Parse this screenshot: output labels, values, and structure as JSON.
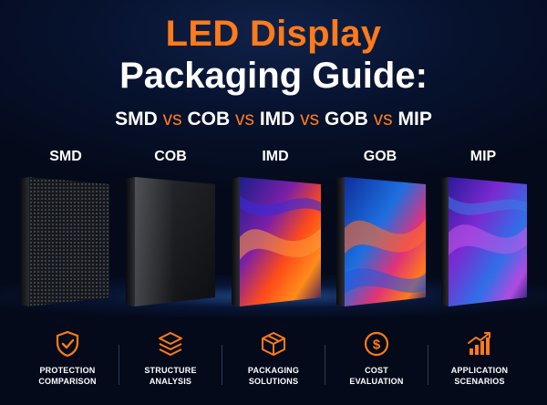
{
  "header": {
    "title_line1": "LED Display",
    "title_line2": "Packaging Guide:",
    "subtitle": [
      {
        "text": "SMD",
        "vs": false
      },
      {
        "text": " vs ",
        "vs": true
      },
      {
        "text": "COB",
        "vs": false
      },
      {
        "text": " vs ",
        "vs": true
      },
      {
        "text": "IMD",
        "vs": false
      },
      {
        "text": " vs ",
        "vs": true
      },
      {
        "text": "GOB",
        "vs": false
      },
      {
        "text": " vs ",
        "vs": true
      },
      {
        "text": "MIP",
        "vs": false
      }
    ]
  },
  "panels": [
    {
      "label": "SMD"
    },
    {
      "label": "COB"
    },
    {
      "label": "IMD"
    },
    {
      "label": "GOB"
    },
    {
      "label": "MIP"
    }
  ],
  "features": [
    {
      "icon": "shield-check-icon",
      "line1": "PROTECTION",
      "line2": "COMPARISON"
    },
    {
      "icon": "layers-icon",
      "line1": "STRUCTURE",
      "line2": "ANALYSIS"
    },
    {
      "icon": "package-box-icon",
      "line1": "PACKAGING",
      "line2": "SOLUTIONS"
    },
    {
      "icon": "dollar-coin-icon",
      "line1": "COST",
      "line2": "EVALUATION"
    },
    {
      "icon": "bar-chart-arrow-icon",
      "line1": "APPLICATION",
      "line2": "SCENARIOS"
    }
  ],
  "colors": {
    "accent": "#ff7a1a",
    "background": "#050b1c",
    "text": "#ffffff"
  }
}
